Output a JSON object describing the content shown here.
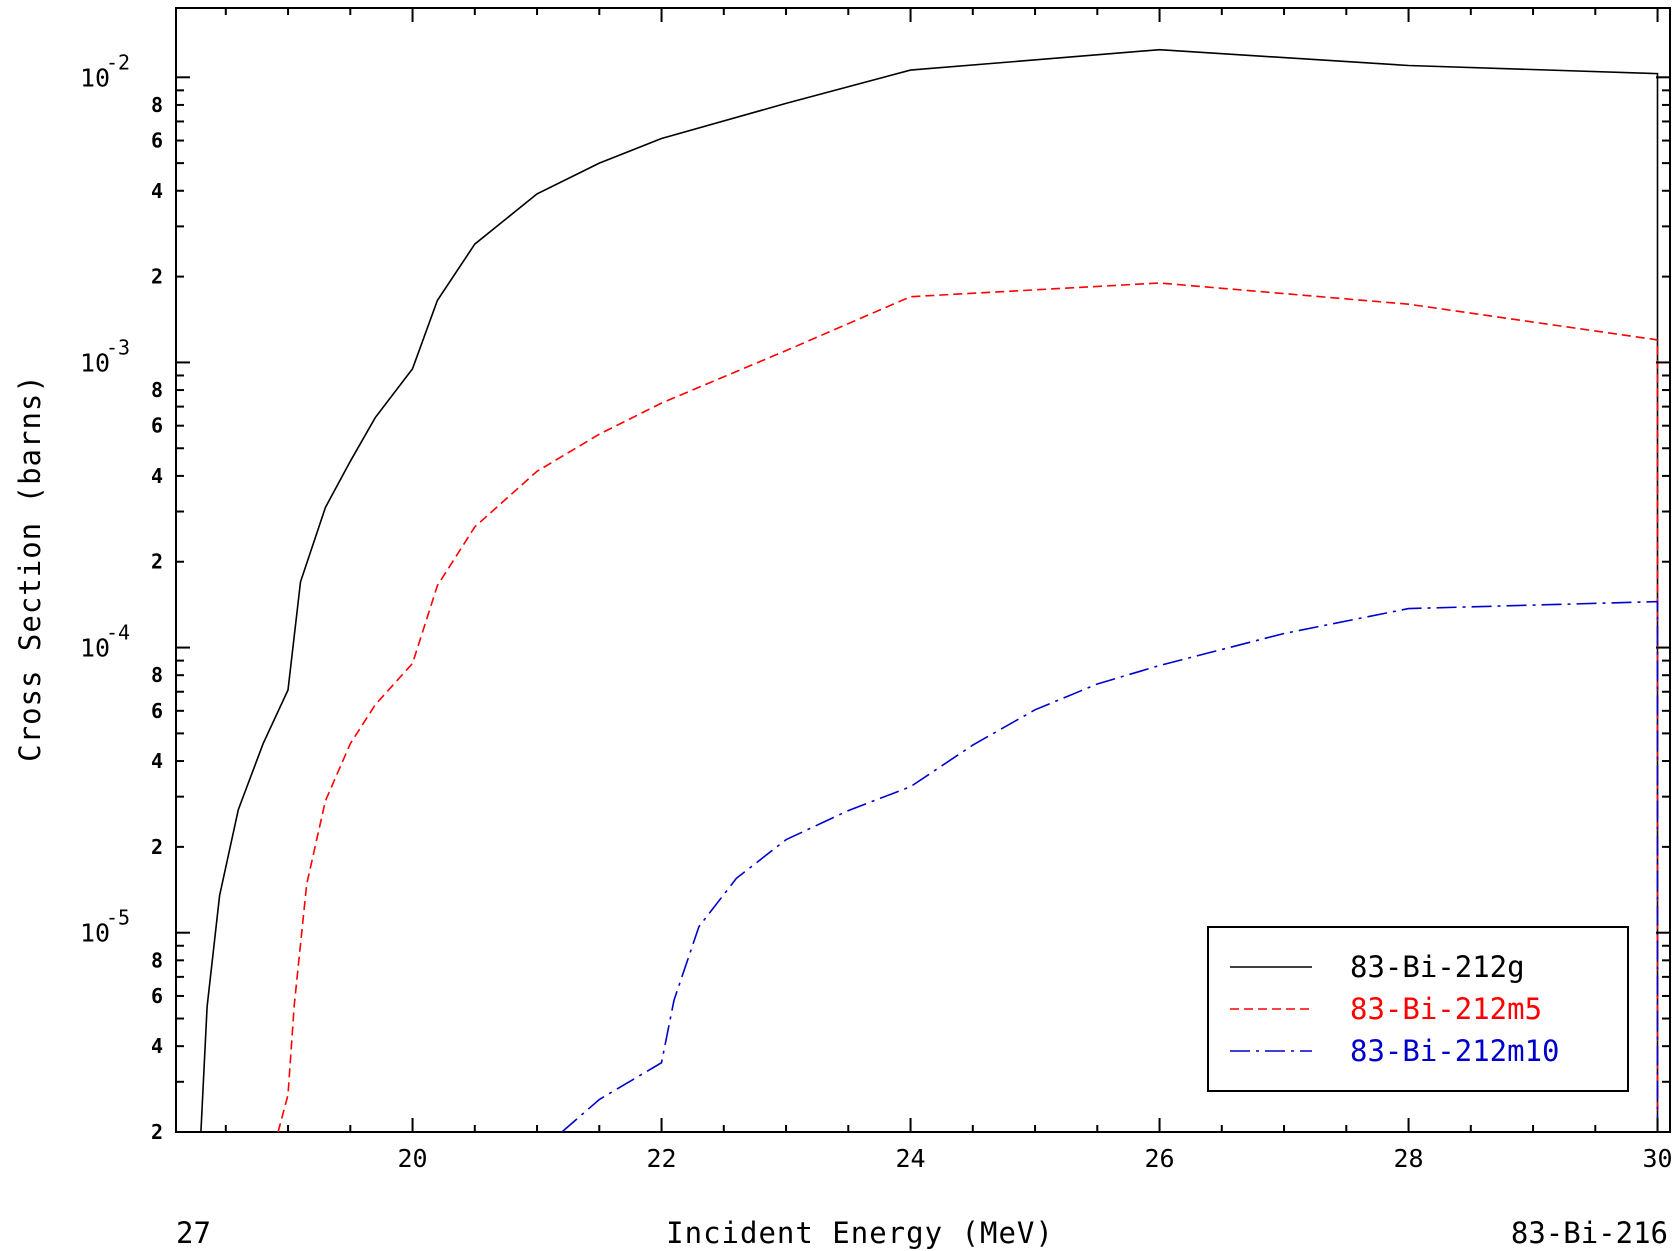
{
  "chart_data": {
    "type": "line",
    "xlabel": "Incident Energy (MeV)",
    "ylabel": "Cross Section (barns)",
    "footer_left": "27",
    "footer_right": "83-Bi-216",
    "x_scale": "linear",
    "y_scale": "log",
    "xlim": [
      18.1,
      30.1
    ],
    "ylim": [
      2e-06,
      0.0175
    ],
    "x_ticks": [
      20,
      22,
      24,
      26,
      28,
      30
    ],
    "x_tick_labels": [
      "20",
      "22",
      "24",
      "26",
      "28",
      "30"
    ],
    "y_decades": [
      {
        "value": 1e-05,
        "mantissa": "10",
        "exponent": "-5"
      },
      {
        "value": 0.0001,
        "mantissa": "10",
        "exponent": "-4"
      },
      {
        "value": 0.001,
        "mantissa": "10",
        "exponent": "-3"
      },
      {
        "value": 0.01,
        "mantissa": "10",
        "exponent": "-2"
      }
    ],
    "y_minor_labels": [
      "2",
      "4",
      "6",
      "8"
    ],
    "grid": false,
    "legend_position": "bottom-right",
    "series": [
      {
        "name": "83-Bi-212g",
        "color": "#000000",
        "dash": "solid",
        "x": [
          18.3,
          18.35,
          18.45,
          18.6,
          18.8,
          19.0,
          19.1,
          19.3,
          19.5,
          19.7,
          20.0,
          20.2,
          20.5,
          21.0,
          21.5,
          22.0,
          23.0,
          24.0,
          26.0,
          28.0,
          30.0,
          30.0
        ],
        "y": [
          2e-06,
          5.5e-06,
          1.35e-05,
          2.7e-05,
          4.6e-05,
          7.1e-05,
          0.00017,
          0.00031,
          0.00045,
          0.00064,
          0.00095,
          0.00165,
          0.0026,
          0.0039,
          0.005,
          0.0061,
          0.0081,
          0.0106,
          0.0125,
          0.011,
          0.0103,
          2e-06
        ]
      },
      {
        "name": "83-Bi-212m5",
        "color": "#ff0000",
        "dash": "dashed",
        "x": [
          18.92,
          19.0,
          19.05,
          19.15,
          19.3,
          19.5,
          19.7,
          20.0,
          20.2,
          20.5,
          21.0,
          21.5,
          22.0,
          23.0,
          24.0,
          26.0,
          28.0,
          30.0,
          30.0
        ],
        "y": [
          2e-06,
          2.7e-06,
          5.6e-06,
          1.48e-05,
          2.9e-05,
          4.6e-05,
          6.3e-05,
          8.8e-05,
          0.000165,
          0.000265,
          0.000415,
          0.00056,
          0.00072,
          0.0011,
          0.0017,
          0.0019,
          0.0016,
          0.0012,
          2e-06
        ]
      },
      {
        "name": "83-Bi-212m10",
        "color": "#0000cc",
        "dash": "dashdot",
        "x": [
          21.2,
          21.5,
          22.0,
          22.1,
          22.3,
          22.6,
          23.0,
          23.5,
          24.0,
          24.5,
          25.0,
          25.5,
          26.0,
          27.0,
          28.0,
          30.0,
          30.0
        ],
        "y": [
          2e-06,
          2.6e-06,
          3.5e-06,
          5.8e-06,
          1.05e-05,
          1.55e-05,
          2.12e-05,
          2.68e-05,
          3.25e-05,
          4.55e-05,
          6.05e-05,
          7.45e-05,
          8.65e-05,
          0.000112,
          0.000137,
          0.000145,
          2e-06
        ]
      }
    ]
  }
}
